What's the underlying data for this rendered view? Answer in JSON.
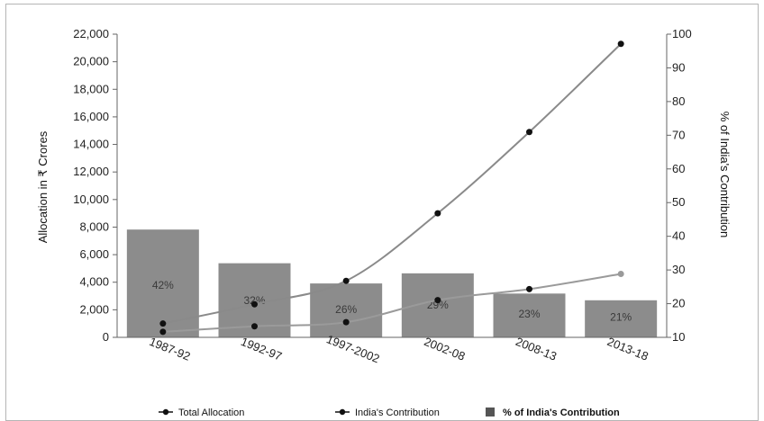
{
  "chart_data": {
    "type": "bar",
    "categories": [
      "1987-92",
      "1992-97",
      "1997-2002",
      "2002-08",
      "2008-13",
      "2013-18"
    ],
    "series": [
      {
        "name": "% of India's Contribution",
        "kind": "bar",
        "axis": "right",
        "values": [
          42,
          32,
          26,
          29,
          23,
          21
        ]
      },
      {
        "name": "Total Allocation",
        "kind": "line",
        "axis": "left",
        "values": [
          1000,
          2400,
          4100,
          9000,
          14900,
          21300
        ]
      },
      {
        "name": "India's Contribution",
        "kind": "line",
        "axis": "left",
        "values": [
          400,
          800,
          1100,
          2700,
          3500,
          4600
        ]
      }
    ],
    "bar_labels": [
      "42%",
      "32%",
      "26%",
      "29%",
      "23%",
      "21%"
    ],
    "left_ticks": [
      "0",
      "2,000",
      "4,000",
      "6,000",
      "8,000",
      "10,000",
      "12,000",
      "14,000",
      "16,000",
      "18,000",
      "20,000",
      "22,000"
    ],
    "right_ticks": [
      "10",
      "20",
      "30",
      "40",
      "50",
      "60",
      "70",
      "80",
      "90",
      "100"
    ],
    "ylim_left": [
      0,
      22000
    ],
    "ylim_right": [
      10,
      100
    ],
    "ylabel_left": "Allocation in ₹ Crores",
    "ylabel_right": "% of India's Contribution",
    "legend_position": "bottom",
    "colors": {
      "bar": "#8c8c8c",
      "total_line": "#8a8a8a",
      "india_line": "#9a9a9a",
      "marker": "#111111",
      "text": "#222222"
    }
  }
}
